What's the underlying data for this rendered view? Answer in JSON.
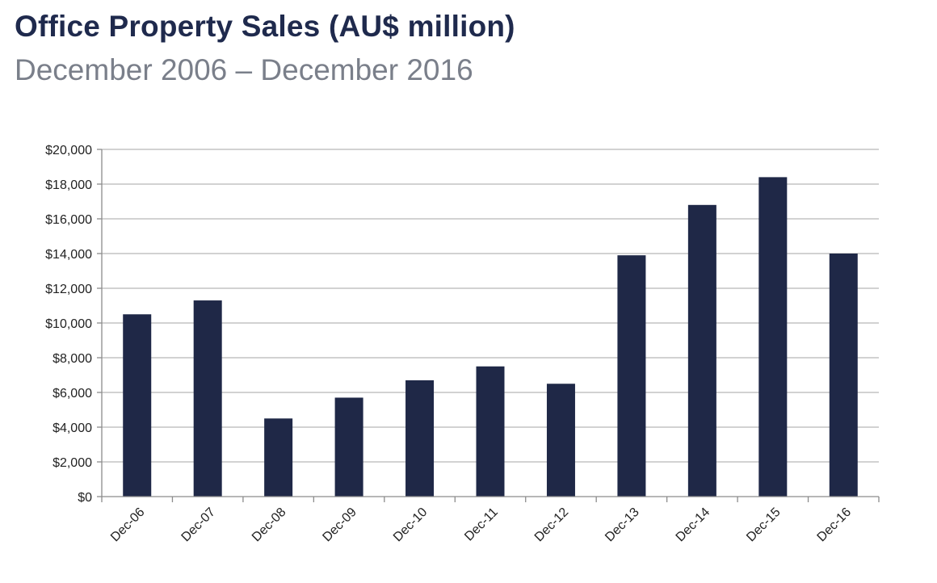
{
  "title": "Office Property Sales (AU$ million)",
  "subtitle": "December 2006 – December 2016",
  "colors": {
    "bar": "#1f2847",
    "grid": "#b8b8b8",
    "axis": "#8c8c8c"
  },
  "chart_data": {
    "type": "bar",
    "title": "Office Property Sales (AU$ million)",
    "subtitle": "December 2006 – December 2016",
    "xlabel": "",
    "ylabel": "",
    "categories": [
      "Dec-06",
      "Dec-07",
      "Dec-08",
      "Dec-09",
      "Dec-10",
      "Dec-11",
      "Dec-12",
      "Dec-13",
      "Dec-14",
      "Dec-15",
      "Dec-16"
    ],
    "values": [
      10500,
      11300,
      4500,
      5700,
      6700,
      7500,
      6500,
      13900,
      16800,
      18400,
      14000
    ],
    "ylim": [
      0,
      20000
    ],
    "yticks": [
      0,
      2000,
      4000,
      6000,
      8000,
      10000,
      12000,
      14000,
      16000,
      18000,
      20000
    ],
    "ytick_labels": [
      "$0",
      "$2,000",
      "$4,000",
      "$6,000",
      "$8,000",
      "$10,000",
      "$12,000",
      "$14,000",
      "$16,000",
      "$18,000",
      "$20,000"
    ],
    "grid": true,
    "legend": "none"
  }
}
